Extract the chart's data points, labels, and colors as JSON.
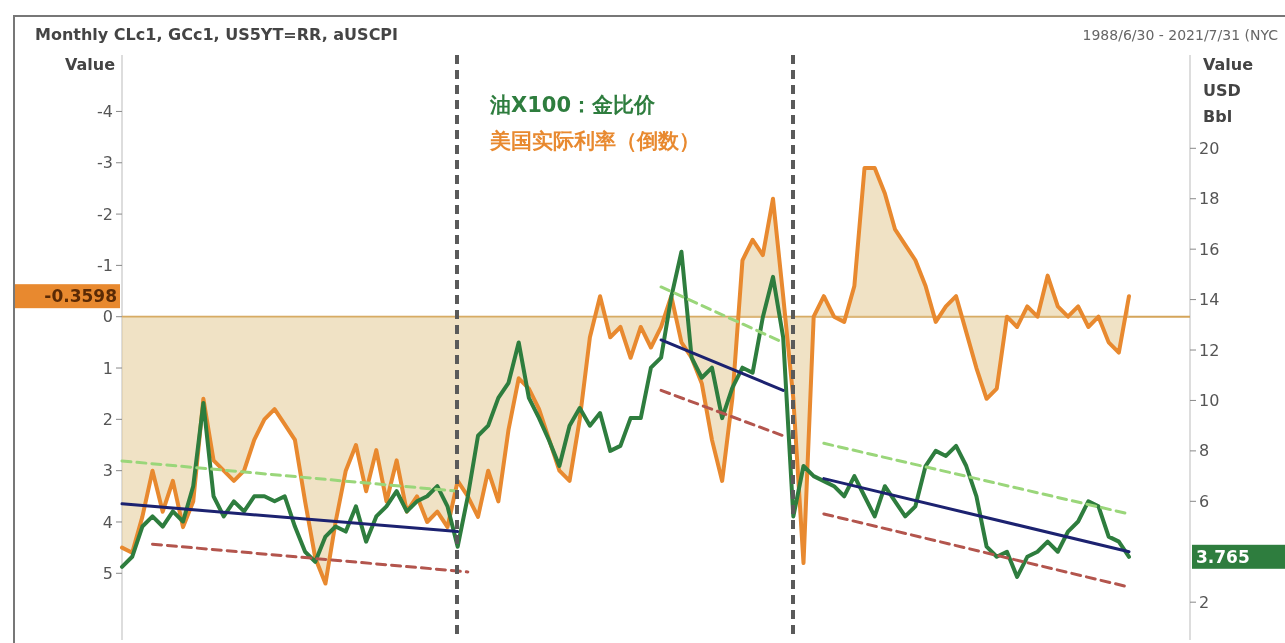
{
  "chart_data": {
    "type": "line",
    "title": "Monthly CLc1, GCc1, US5YT=RR, aUSCPI",
    "subtitle": "1988/6/30 - 2021/7/31 (NYC",
    "ylabel": "Value",
    "y2label": "Value USD Bbl",
    "legend": "top",
    "categories": [
      null,
      null,
      null,
      null,
      null,
      null,
      null,
      null,
      null,
      null,
      null,
      null,
      null,
      null,
      null,
      null,
      null,
      null,
      null,
      null,
      null,
      null,
      null,
      null,
      null,
      null,
      null,
      null,
      null,
      null,
      null,
      null,
      null,
      null,
      null,
      null,
      null,
      null,
      null,
      null,
      null,
      null,
      null,
      null,
      null,
      null,
      null,
      null,
      null,
      null,
      null,
      null,
      null,
      null,
      null,
      null,
      null,
      null,
      null,
      null,
      null,
      null,
      null,
      null,
      null,
      null,
      null,
      null,
      null,
      null,
      null,
      null,
      null,
      null,
      null,
      null,
      null,
      null,
      null,
      null,
      null,
      null,
      null,
      null,
      null,
      null,
      null,
      null,
      null,
      null,
      null,
      null,
      null,
      null,
      null,
      null,
      null,
      null,
      null,
      null
    ],
    "ylim": [
      6.3,
      -5.1
    ],
    "yticks": [
      -4,
      -3,
      -2,
      -1,
      0,
      1,
      2,
      3,
      4,
      5
    ],
    "y2lim": [
      0.5,
      23.7
    ],
    "y2ticks": [
      2,
      6,
      8,
      10,
      12,
      14,
      16,
      18,
      20
    ],
    "annotations": [
      "-0.3598",
      "3.765"
    ],
    "ref_lines": [
      {
        "axis": "y",
        "value": 0,
        "color": "#d4a55a"
      }
    ],
    "series": [
      {
        "name": "油X100：金比价",
        "color": "#2e7d3e",
        "axis": "y2",
        "values": [
          3.4,
          3.8,
          5.0,
          5.4,
          5.0,
          5.6,
          5.2,
          6.6,
          9.9,
          6.2,
          5.4,
          6.0,
          5.6,
          6.2,
          6.2,
          6.0,
          6.2,
          5.0,
          4.0,
          3.6,
          4.6,
          5.0,
          4.8,
          5.8,
          4.4,
          5.4,
          5.8,
          6.4,
          5.6,
          6.0,
          6.2,
          6.6,
          5.8,
          4.2,
          6.2,
          8.6,
          9.0,
          10.1,
          10.7,
          12.3,
          10.1,
          9.3,
          8.4,
          7.4,
          9.0,
          9.7,
          9.0,
          9.5,
          8.0,
          8.2,
          9.3,
          9.3,
          11.3,
          11.7,
          14.1,
          15.9,
          11.7,
          10.9,
          11.3,
          9.3,
          10.5,
          11.3,
          11.1,
          13.3,
          14.9,
          12.5,
          5.4,
          7.4,
          7.0,
          6.8,
          6.6,
          6.2,
          7.0,
          6.2,
          5.4,
          6.6,
          6.0,
          5.4,
          5.8,
          7.4,
          8.0,
          7.8,
          8.2,
          7.4,
          6.2,
          4.2,
          3.8,
          4.0,
          3.0,
          3.8,
          4.0,
          4.4,
          4.0,
          4.8,
          5.2,
          6.0,
          5.8,
          4.6,
          4.4,
          3.8
        ]
      },
      {
        "name": "美国实际利率（倒数）",
        "color": "#e8892f",
        "type": "area",
        "values": [
          4.5,
          4.6,
          3.9,
          3.0,
          3.8,
          3.2,
          4.1,
          3.6,
          1.6,
          2.8,
          3.0,
          3.2,
          3.0,
          2.4,
          2.0,
          1.8,
          2.1,
          2.4,
          3.6,
          4.7,
          5.2,
          4.0,
          3.0,
          2.5,
          3.4,
          2.6,
          3.6,
          2.8,
          3.8,
          3.5,
          4.0,
          3.8,
          4.1,
          3.2,
          3.5,
          3.9,
          3.0,
          3.6,
          2.2,
          1.2,
          1.4,
          1.8,
          2.4,
          3.0,
          3.2,
          2.0,
          0.4,
          -0.4,
          0.4,
          0.2,
          0.8,
          0.2,
          0.6,
          0.2,
          -0.4,
          0.5,
          0.8,
          1.3,
          2.4,
          3.2,
          1.6,
          -1.1,
          -1.5,
          -1.2,
          -2.3,
          -0.4,
          1.6,
          4.8,
          0.0,
          -0.4,
          0.0,
          0.1,
          -0.6,
          -2.9,
          -2.9,
          -2.4,
          -1.7,
          -1.4,
          -1.1,
          -0.6,
          0.1,
          -0.2,
          -0.4,
          0.3,
          1.0,
          1.6,
          1.4,
          0.0,
          0.2,
          -0.2,
          0.0,
          -0.8,
          -0.2,
          0.0,
          -0.2,
          0.2,
          0.0,
          0.5,
          0.7,
          -0.4
        ]
      },
      {
        "color": "#9ad67a",
        "axis": "y2",
        "type": "line",
        "line_style": "dashed",
        "values": [
          7.6,
          null,
          null,
          null,
          null,
          null,
          null,
          null,
          null,
          null,
          null,
          null,
          null,
          null,
          null,
          null,
          null,
          null,
          null,
          null,
          null,
          null,
          null,
          null,
          null,
          null,
          null,
          null,
          null,
          null,
          null,
          null,
          null,
          6.4,
          null,
          null,
          null,
          null,
          null,
          null,
          null,
          null,
          null,
          null,
          null,
          null,
          null,
          null,
          null,
          null,
          null,
          null,
          null,
          null,
          null,
          null,
          null,
          null,
          null,
          null,
          null,
          null,
          null,
          null,
          null,
          null,
          null,
          null,
          null,
          null,
          null,
          null,
          null,
          null,
          null,
          null,
          null,
          null,
          null,
          null,
          null,
          null,
          null,
          null,
          null,
          null,
          null,
          null,
          null,
          null,
          null,
          null,
          null,
          null,
          null,
          null,
          null,
          null,
          null,
          null
        ]
      },
      {
        "color": "#9ad67a",
        "axis": "y2",
        "type": "line",
        "line_style": "dashed",
        "values": [
          null,
          null,
          null,
          null,
          null,
          null,
          null,
          null,
          null,
          null,
          null,
          null,
          null,
          null,
          null,
          null,
          null,
          null,
          null,
          null,
          null,
          null,
          null,
          null,
          null,
          null,
          null,
          null,
          null,
          null,
          null,
          null,
          null,
          null,
          null,
          null,
          null,
          null,
          null,
          null,
          null,
          null,
          null,
          null,
          null,
          null,
          null,
          null,
          null,
          null,
          null,
          null,
          null,
          14.5,
          null,
          null,
          null,
          null,
          null,
          null,
          null,
          null,
          null,
          null,
          null,
          12.3,
          null,
          null,
          null,
          null,
          null,
          null,
          null,
          null,
          null,
          null,
          null,
          null,
          null,
          null,
          null,
          null,
          null,
          null,
          null,
          null,
          null,
          null,
          null,
          null,
          null,
          null,
          null,
          null,
          null,
          null,
          null,
          null,
          null,
          null
        ]
      },
      {
        "color": "#9ad67a",
        "axis": "y2",
        "type": "line",
        "line_style": "dashed",
        "values": [
          null,
          null,
          null,
          null,
          null,
          null,
          null,
          null,
          null,
          null,
          null,
          null,
          null,
          null,
          null,
          null,
          null,
          null,
          null,
          null,
          null,
          null,
          null,
          null,
          null,
          null,
          null,
          null,
          null,
          null,
          null,
          null,
          null,
          null,
          null,
          null,
          null,
          null,
          null,
          null,
          null,
          null,
          null,
          null,
          null,
          null,
          null,
          null,
          null,
          null,
          null,
          null,
          null,
          null,
          null,
          null,
          null,
          null,
          null,
          null,
          null,
          null,
          null,
          null,
          null,
          null,
          null,
          null,
          null,
          8.3,
          null,
          null,
          null,
          null,
          null,
          null,
          null,
          null,
          null,
          null,
          null,
          null,
          null,
          null,
          null,
          null,
          null,
          null,
          null,
          null,
          null,
          null,
          null,
          null,
          null,
          null,
          null,
          null,
          null,
          5.5
        ]
      },
      {
        "color": "#b3554d",
        "axis": "y2",
        "type": "line",
        "line_style": "dashed",
        "values": [
          null,
          null,
          null,
          4.3,
          null,
          null,
          null,
          null,
          null,
          null,
          null,
          null,
          null,
          null,
          null,
          null,
          null,
          null,
          null,
          null,
          null,
          null,
          null,
          null,
          null,
          null,
          null,
          null,
          null,
          null,
          null,
          null,
          null,
          null,
          3.2,
          null,
          null,
          null,
          null,
          null,
          null,
          null,
          null,
          null,
          null,
          null,
          null,
          null,
          null,
          null,
          null,
          null,
          null,
          null,
          null,
          null,
          null,
          null,
          null,
          null,
          null,
          null,
          null,
          null,
          null,
          null,
          null,
          null,
          null,
          null,
          null,
          null,
          null,
          null,
          null,
          null,
          null,
          null,
          null,
          null,
          null,
          null,
          null,
          null,
          null,
          null,
          null,
          null,
          null,
          null,
          null,
          null,
          null,
          null,
          null,
          null,
          null,
          null,
          null,
          null
        ]
      },
      {
        "color": "#b3554d",
        "axis": "y2",
        "type": "line",
        "line_style": "dashed",
        "values": [
          null,
          null,
          null,
          null,
          null,
          null,
          null,
          null,
          null,
          null,
          null,
          null,
          null,
          null,
          null,
          null,
          null,
          null,
          null,
          null,
          null,
          null,
          null,
          null,
          null,
          null,
          null,
          null,
          null,
          null,
          null,
          null,
          null,
          null,
          null,
          null,
          null,
          null,
          null,
          null,
          null,
          null,
          null,
          null,
          null,
          null,
          null,
          null,
          null,
          null,
          null,
          null,
          null,
          10.4,
          null,
          null,
          null,
          null,
          null,
          null,
          null,
          null,
          null,
          null,
          null,
          8.6,
          null,
          null,
          null,
          null,
          null,
          null,
          null,
          null,
          null,
          null,
          null,
          null,
          null,
          null,
          null,
          null,
          null,
          null,
          null,
          null,
          null,
          null,
          null,
          null,
          null,
          null,
          null,
          null,
          null,
          null,
          null,
          null,
          null,
          null
        ]
      },
      {
        "color": "#b3554d",
        "axis": "y2",
        "type": "line",
        "line_style": "dashed",
        "values": [
          null,
          null,
          null,
          null,
          null,
          null,
          null,
          null,
          null,
          null,
          null,
          null,
          null,
          null,
          null,
          null,
          null,
          null,
          null,
          null,
          null,
          null,
          null,
          null,
          null,
          null,
          null,
          null,
          null,
          null,
          null,
          null,
          null,
          null,
          null,
          null,
          null,
          null,
          null,
          null,
          null,
          null,
          null,
          null,
          null,
          null,
          null,
          null,
          null,
          null,
          null,
          null,
          null,
          null,
          null,
          null,
          null,
          null,
          null,
          null,
          null,
          null,
          null,
          null,
          null,
          null,
          null,
          null,
          null,
          5.5,
          null,
          null,
          null,
          null,
          null,
          null,
          null,
          null,
          null,
          null,
          null,
          null,
          null,
          null,
          null,
          null,
          null,
          null,
          null,
          null,
          null,
          null,
          null,
          null,
          null,
          null,
          null,
          null,
          null,
          2.6
        ]
      },
      {
        "color": "#1c2270",
        "axis": "y2",
        "type": "line",
        "values": [
          5.9,
          null,
          null,
          null,
          null,
          null,
          null,
          null,
          null,
          null,
          null,
          null,
          null,
          null,
          null,
          null,
          null,
          null,
          null,
          null,
          null,
          null,
          null,
          null,
          null,
          null,
          null,
          null,
          null,
          null,
          null,
          null,
          null,
          4.8,
          null,
          null,
          null,
          null,
          null,
          null,
          null,
          null,
          null,
          null,
          null,
          null,
          null,
          null,
          null,
          null,
          null,
          null,
          null,
          null,
          null,
          null,
          null,
          null,
          null,
          null,
          null,
          null,
          null,
          null,
          null,
          null,
          null,
          null,
          null,
          null,
          null,
          null,
          null,
          null,
          null,
          null,
          null,
          null,
          null,
          null,
          null,
          null,
          null,
          null,
          null,
          null,
          null,
          null,
          null,
          null,
          null,
          null,
          null,
          null,
          null,
          null,
          null,
          null,
          null,
          null
        ]
      },
      {
        "color": "#1c2270",
        "axis": "y2",
        "type": "line",
        "values": [
          null,
          null,
          null,
          null,
          null,
          null,
          null,
          null,
          null,
          null,
          null,
          null,
          null,
          null,
          null,
          null,
          null,
          null,
          null,
          null,
          null,
          null,
          null,
          null,
          null,
          null,
          null,
          null,
          null,
          null,
          null,
          null,
          null,
          null,
          null,
          null,
          null,
          null,
          null,
          null,
          null,
          null,
          null,
          null,
          null,
          null,
          null,
          null,
          null,
          null,
          null,
          null,
          null,
          12.4,
          null,
          null,
          null,
          null,
          null,
          null,
          null,
          null,
          null,
          null,
          null,
          10.4,
          null,
          null,
          null,
          null,
          null,
          null,
          null,
          null,
          null,
          null,
          null,
          null,
          null,
          null,
          null,
          null,
          null,
          null,
          null,
          null,
          null,
          null,
          null,
          null,
          null,
          null,
          null,
          null,
          null,
          null,
          null,
          null,
          null,
          null
        ]
      },
      {
        "color": "#1c2270",
        "axis": "y2",
        "type": "line",
        "values": [
          null,
          null,
          null,
          null,
          null,
          null,
          null,
          null,
          null,
          null,
          null,
          null,
          null,
          null,
          null,
          null,
          null,
          null,
          null,
          null,
          null,
          null,
          null,
          null,
          null,
          null,
          null,
          null,
          null,
          null,
          null,
          null,
          null,
          null,
          null,
          null,
          null,
          null,
          null,
          null,
          null,
          null,
          null,
          null,
          null,
          null,
          null,
          null,
          null,
          null,
          null,
          null,
          null,
          null,
          null,
          null,
          null,
          null,
          null,
          null,
          null,
          null,
          null,
          null,
          null,
          null,
          null,
          null,
          null,
          6.9,
          null,
          null,
          null,
          null,
          null,
          null,
          null,
          null,
          null,
          null,
          null,
          null,
          null,
          null,
          null,
          null,
          null,
          null,
          null,
          null,
          null,
          null,
          null,
          null,
          null,
          null,
          null,
          null,
          null,
          4.0
        ]
      }
    ]
  }
}
